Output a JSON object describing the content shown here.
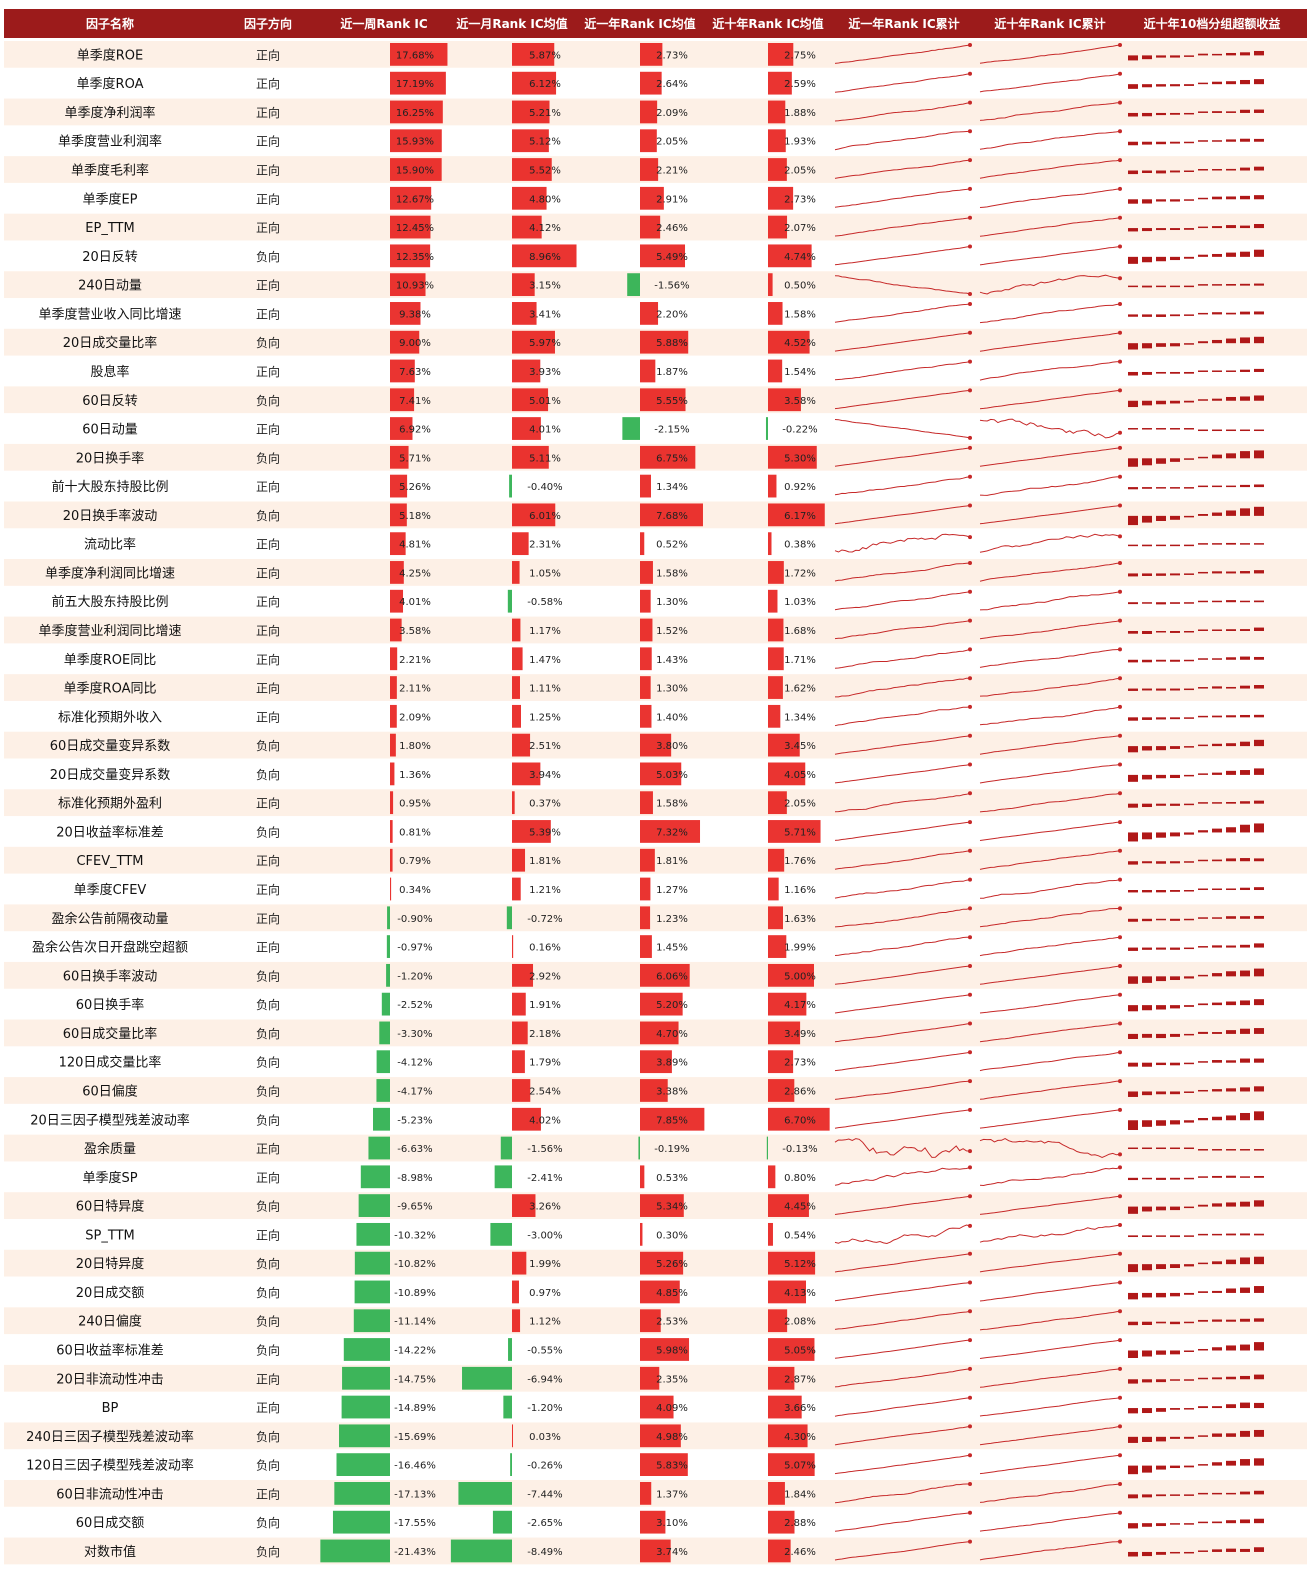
{
  "table_header": {
    "columns": [
      "因子名称",
      "因子方向",
      "近一周Rank IC",
      "近一月Rank IC均值",
      "近一年Rank IC均值",
      "近十年Rank IC均值",
      "近一年Rank IC累计",
      "近十年Rank IC累计",
      "近十年10档分组超额收益"
    ]
  },
  "colors": {
    "header_bg": "#9c1b1b",
    "header_text": "#ffffff",
    "row_stripe": "#fdf0e6",
    "bar_positive": "#e8231f",
    "bar_negative": "#2db04e",
    "sparkline": "#c62828",
    "decile_bar": "#b01818"
  },
  "chart_data": {
    "type": "table",
    "title": "",
    "columns": [
      "因子名称",
      "因子方向",
      "近一周Rank IC",
      "近一月Rank IC均值",
      "近一年Rank IC均值",
      "近十年Rank IC均值",
      "近一年Rank IC累计",
      "近十年Rank IC累计",
      "近十年10档分组超额收益"
    ],
    "factors": [
      {
        "name": "单季度ROE",
        "direction": "正向",
        "week": 17.68,
        "month": 5.87,
        "year": 2.73,
        "decade": 2.75
      },
      {
        "name": "单季度ROA",
        "direction": "正向",
        "week": 17.19,
        "month": 6.12,
        "year": 2.64,
        "decade": 2.59
      },
      {
        "name": "单季度净利润率",
        "direction": "正向",
        "week": 16.25,
        "month": 5.21,
        "year": 2.09,
        "decade": 1.88
      },
      {
        "name": "单季度营业利润率",
        "direction": "正向",
        "week": 15.93,
        "month": 5.12,
        "year": 2.05,
        "decade": 1.93
      },
      {
        "name": "单季度毛利率",
        "direction": "正向",
        "week": 15.9,
        "month": 5.52,
        "year": 2.21,
        "decade": 2.05
      },
      {
        "name": "单季度EP",
        "direction": "正向",
        "week": 12.67,
        "month": 4.8,
        "year": 2.91,
        "decade": 2.73
      },
      {
        "name": "EP_TTM",
        "direction": "正向",
        "week": 12.45,
        "month": 4.12,
        "year": 2.46,
        "decade": 2.07
      },
      {
        "name": "20日反转",
        "direction": "负向",
        "week": 12.35,
        "month": 8.96,
        "year": 5.49,
        "decade": 4.74
      },
      {
        "name": "240日动量",
        "direction": "正向",
        "week": 10.93,
        "month": 3.15,
        "year": -1.56,
        "decade": 0.5
      },
      {
        "name": "单季度营业收入同比增速",
        "direction": "正向",
        "week": 9.38,
        "month": 3.41,
        "year": 2.2,
        "decade": 1.58
      },
      {
        "name": "20日成交量比率",
        "direction": "负向",
        "week": 9.0,
        "month": 5.97,
        "year": 5.88,
        "decade": 4.52
      },
      {
        "name": "股息率",
        "direction": "正向",
        "week": 7.63,
        "month": 3.93,
        "year": 1.87,
        "decade": 1.54
      },
      {
        "name": "60日反转",
        "direction": "负向",
        "week": 7.41,
        "month": 5.01,
        "year": 5.55,
        "decade": 3.58
      },
      {
        "name": "60日动量",
        "direction": "正向",
        "week": 6.92,
        "month": 4.01,
        "year": -2.15,
        "decade": -0.22
      },
      {
        "name": "20日换手率",
        "direction": "负向",
        "week": 5.71,
        "month": 5.11,
        "year": 6.75,
        "decade": 5.3
      },
      {
        "name": "前十大股东持股比例",
        "direction": "正向",
        "week": 5.26,
        "month": -0.4,
        "year": 1.34,
        "decade": 0.92
      },
      {
        "name": "20日换手率波动",
        "direction": "负向",
        "week": 5.18,
        "month": 6.01,
        "year": 7.68,
        "decade": 6.17
      },
      {
        "name": "流动比率",
        "direction": "正向",
        "week": 4.81,
        "month": 2.31,
        "year": 0.52,
        "decade": 0.38
      },
      {
        "name": "单季度净利润同比增速",
        "direction": "正向",
        "week": 4.25,
        "month": 1.05,
        "year": 1.58,
        "decade": 1.72
      },
      {
        "name": "前五大股东持股比例",
        "direction": "正向",
        "week": 4.01,
        "month": -0.58,
        "year": 1.3,
        "decade": 1.03
      },
      {
        "name": "单季度营业利润同比增速",
        "direction": "正向",
        "week": 3.58,
        "month": 1.17,
        "year": 1.52,
        "decade": 1.68
      },
      {
        "name": "单季度ROE同比",
        "direction": "正向",
        "week": 2.21,
        "month": 1.47,
        "year": 1.43,
        "decade": 1.71
      },
      {
        "name": "单季度ROA同比",
        "direction": "正向",
        "week": 2.11,
        "month": 1.11,
        "year": 1.3,
        "decade": 1.62
      },
      {
        "name": "标准化预期外收入",
        "direction": "正向",
        "week": 2.09,
        "month": 1.25,
        "year": 1.4,
        "decade": 1.34
      },
      {
        "name": "60日成交量变异系数",
        "direction": "负向",
        "week": 1.8,
        "month": 2.51,
        "year": 3.8,
        "decade": 3.45
      },
      {
        "name": "20日成交量变异系数",
        "direction": "负向",
        "week": 1.36,
        "month": 3.94,
        "year": 5.03,
        "decade": 4.05
      },
      {
        "name": "标准化预期外盈利",
        "direction": "正向",
        "week": 0.95,
        "month": 0.37,
        "year": 1.58,
        "decade": 2.05
      },
      {
        "name": "20日收益率标准差",
        "direction": "负向",
        "week": 0.81,
        "month": 5.39,
        "year": 7.32,
        "decade": 5.71
      },
      {
        "name": "CFEV_TTM",
        "direction": "正向",
        "week": 0.79,
        "month": 1.81,
        "year": 1.81,
        "decade": 1.76
      },
      {
        "name": "单季度CFEV",
        "direction": "正向",
        "week": 0.34,
        "month": 1.21,
        "year": 1.27,
        "decade": 1.16
      },
      {
        "name": "盈余公告前隔夜动量",
        "direction": "正向",
        "week": -0.9,
        "month": -0.72,
        "year": 1.23,
        "decade": 1.63
      },
      {
        "name": "盈余公告次日开盘跳空超额",
        "direction": "正向",
        "week": -0.97,
        "month": 0.16,
        "year": 1.45,
        "decade": 1.99
      },
      {
        "name": "60日换手率波动",
        "direction": "负向",
        "week": -1.2,
        "month": 2.92,
        "year": 6.06,
        "decade": 5.0
      },
      {
        "name": "60日换手率",
        "direction": "负向",
        "week": -2.52,
        "month": 1.91,
        "year": 5.2,
        "decade": 4.17
      },
      {
        "name": "60日成交量比率",
        "direction": "负向",
        "week": -3.3,
        "month": 2.18,
        "year": 4.7,
        "decade": 3.49
      },
      {
        "name": "120日成交量比率",
        "direction": "负向",
        "week": -4.12,
        "month": 1.79,
        "year": 3.89,
        "decade": 2.73
      },
      {
        "name": "60日偏度",
        "direction": "负向",
        "week": -4.17,
        "month": 2.54,
        "year": 3.38,
        "decade": 2.86
      },
      {
        "name": "20日三因子模型残差波动率",
        "direction": "负向",
        "week": -5.23,
        "month": 4.02,
        "year": 7.85,
        "decade": 6.7
      },
      {
        "name": "盈余质量",
        "direction": "正向",
        "week": -6.63,
        "month": -1.56,
        "year": -0.19,
        "decade": -0.13
      },
      {
        "name": "单季度SP",
        "direction": "正向",
        "week": -8.98,
        "month": -2.41,
        "year": 0.53,
        "decade": 0.8
      },
      {
        "name": "60日特异度",
        "direction": "负向",
        "week": -9.65,
        "month": 3.26,
        "year": 5.34,
        "decade": 4.45
      },
      {
        "name": "SP_TTM",
        "direction": "正向",
        "week": -10.32,
        "month": -3.0,
        "year": 0.3,
        "decade": 0.54
      },
      {
        "name": "20日特异度",
        "direction": "负向",
        "week": -10.82,
        "month": 1.99,
        "year": 5.26,
        "decade": 5.12
      },
      {
        "name": "20日成交额",
        "direction": "负向",
        "week": -10.89,
        "month": 0.97,
        "year": 4.85,
        "decade": 4.13
      },
      {
        "name": "240日偏度",
        "direction": "负向",
        "week": -11.14,
        "month": 1.12,
        "year": 2.53,
        "decade": 2.08
      },
      {
        "name": "60日收益率标准差",
        "direction": "负向",
        "week": -14.22,
        "month": -0.55,
        "year": 5.98,
        "decade": 5.05
      },
      {
        "name": "20日非流动性冲击",
        "direction": "正向",
        "week": -14.75,
        "month": -6.94,
        "year": 2.35,
        "decade": 2.87
      },
      {
        "name": "BP",
        "direction": "正向",
        "week": -14.89,
        "month": -1.2,
        "year": 4.09,
        "decade": 3.66
      },
      {
        "name": "240日三因子模型残差波动率",
        "direction": "负向",
        "week": -15.69,
        "month": 0.03,
        "year": 4.98,
        "decade": 4.3
      },
      {
        "name": "120日三因子模型残差波动率",
        "direction": "负向",
        "week": -16.46,
        "month": -0.26,
        "year": 5.83,
        "decade": 5.07
      },
      {
        "name": "60日非流动性冲击",
        "direction": "正向",
        "week": -17.13,
        "month": -7.44,
        "year": 1.37,
        "decade": 1.84
      },
      {
        "name": "60日成交额",
        "direction": "负向",
        "week": -17.55,
        "month": -2.65,
        "year": 3.1,
        "decade": 2.88
      },
      {
        "name": "对数市值",
        "direction": "负向",
        "week": -21.43,
        "month": -8.49,
        "year": 3.74,
        "decade": 2.46
      }
    ]
  }
}
